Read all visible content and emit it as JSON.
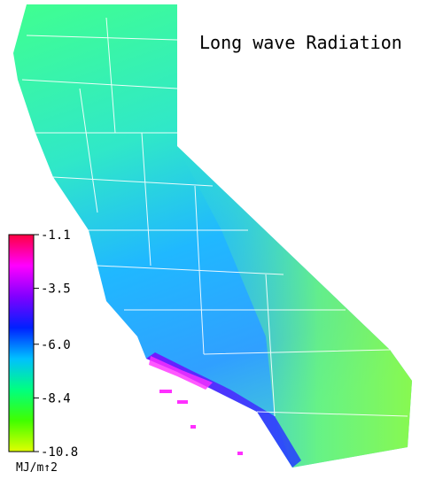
{
  "title": "Long wave Radiation",
  "colorbar": {
    "ticks": [
      -1.1,
      -3.5,
      {
        "value": -6,
        "label": "-6.0"
      },
      -8.4,
      -10.8
    ],
    "colors": [
      "#ff0040",
      "#ff00ff",
      "#8000ff",
      "#0020ff",
      "#00c0ff",
      "#00ff80",
      "#40ff00",
      "#e0ff00"
    ],
    "unit": "MJ/m↑2"
  }
}
